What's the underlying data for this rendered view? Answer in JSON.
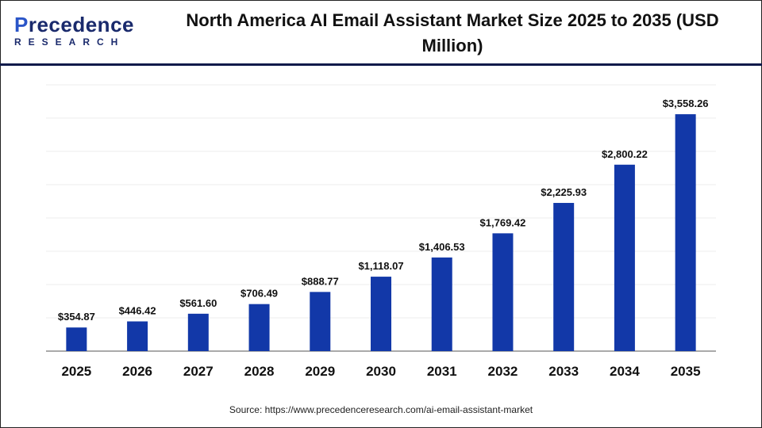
{
  "logo": {
    "main_prefix": "P",
    "main_rest": "recedence",
    "sub": "RESEARCH"
  },
  "title": "North America AI Email Assistant Market Size 2025 to 2035 (USD Million)",
  "source": "Source: https://www.precedenceresearch.com/ai-email-assistant-market",
  "chart_data": {
    "type": "bar",
    "title": "North America AI Email Assistant Market Size 2025 to 2035 (USD Million)",
    "categories": [
      "2025",
      "2026",
      "2027",
      "2028",
      "2029",
      "2030",
      "2031",
      "2032",
      "2033",
      "2034",
      "2035"
    ],
    "values": [
      354.87,
      446.42,
      561.6,
      706.49,
      888.77,
      1118.07,
      1406.53,
      1769.42,
      2225.93,
      2800.22,
      3558.26
    ],
    "labels": [
      "$354.87",
      "$446.42",
      "$561.60",
      "$706.49",
      "$888.77",
      "$1,118.07",
      "$1,406.53",
      "$1,769.42",
      "$2,225.93",
      "$2,800.22",
      "$3,558.26"
    ],
    "ylim": [
      0,
      4000
    ],
    "grid": true,
    "bar_color": "#1238a8"
  }
}
